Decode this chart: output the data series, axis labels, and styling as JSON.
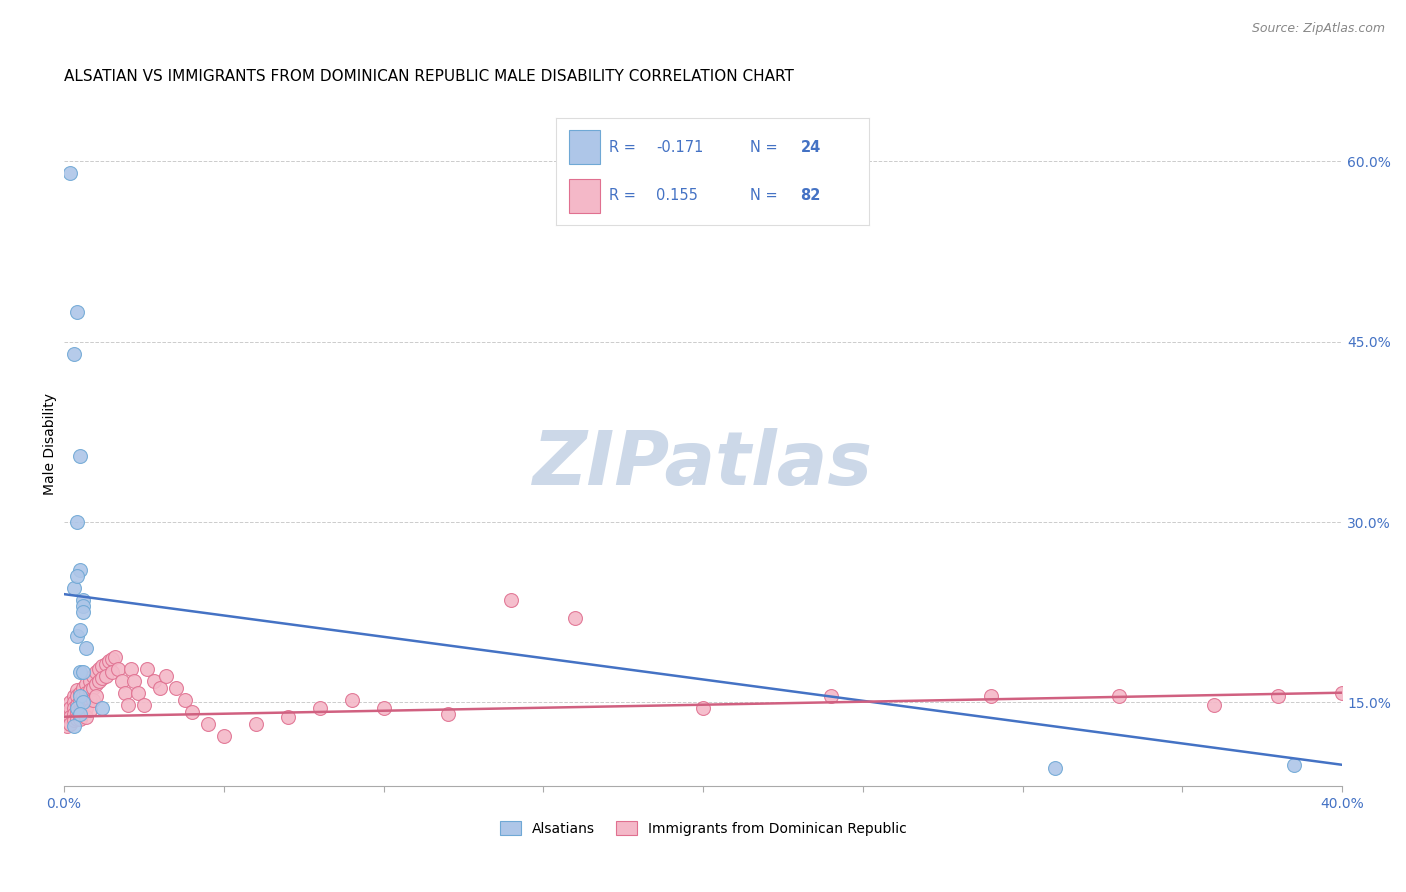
{
  "title": "ALSATIAN VS IMMIGRANTS FROM DOMINICAN REPUBLIC MALE DISABILITY CORRELATION CHART",
  "source": "Source: ZipAtlas.com",
  "ylabel": "Male Disability",
  "right_yticks": [
    0.15,
    0.3,
    0.45,
    0.6
  ],
  "right_yticklabels": [
    "15.0%",
    "30.0%",
    "45.0%",
    "60.0%"
  ],
  "xmin": 0.0,
  "xmax": 0.4,
  "ymin": 0.08,
  "ymax": 0.65,
  "watermark": "ZIPatlas",
  "series": [
    {
      "name": "Alsatians",
      "color": "#aec6e8",
      "edge_color": "#6fa8d5",
      "R": -0.171,
      "N": 24,
      "x": [
        0.002,
        0.004,
        0.003,
        0.005,
        0.004,
        0.005,
        0.003,
        0.006,
        0.004,
        0.006,
        0.005,
        0.004,
        0.006,
        0.005,
        0.007,
        0.006,
        0.003,
        0.005,
        0.004,
        0.006,
        0.005,
        0.012,
        0.31,
        0.385
      ],
      "y": [
        0.59,
        0.475,
        0.44,
        0.355,
        0.3,
        0.26,
        0.245,
        0.235,
        0.205,
        0.23,
        0.175,
        0.255,
        0.225,
        0.21,
        0.195,
        0.175,
        0.13,
        0.155,
        0.145,
        0.15,
        0.14,
        0.145,
        0.095,
        0.098
      ]
    },
    {
      "name": "Immigrants from Dominican Republic",
      "color": "#f4b8c8",
      "edge_color": "#e07090",
      "R": 0.155,
      "N": 82,
      "x": [
        0.001,
        0.001,
        0.001,
        0.002,
        0.002,
        0.002,
        0.002,
        0.003,
        0.003,
        0.003,
        0.003,
        0.003,
        0.004,
        0.004,
        0.004,
        0.004,
        0.004,
        0.005,
        0.005,
        0.005,
        0.005,
        0.006,
        0.006,
        0.006,
        0.006,
        0.007,
        0.007,
        0.007,
        0.007,
        0.007,
        0.008,
        0.008,
        0.008,
        0.008,
        0.009,
        0.009,
        0.009,
        0.01,
        0.01,
        0.01,
        0.011,
        0.011,
        0.012,
        0.012,
        0.013,
        0.013,
        0.014,
        0.015,
        0.015,
        0.016,
        0.017,
        0.018,
        0.019,
        0.02,
        0.021,
        0.022,
        0.023,
        0.025,
        0.026,
        0.028,
        0.03,
        0.032,
        0.035,
        0.038,
        0.04,
        0.045,
        0.05,
        0.06,
        0.07,
        0.08,
        0.09,
        0.1,
        0.12,
        0.14,
        0.16,
        0.2,
        0.24,
        0.29,
        0.33,
        0.36,
        0.38,
        0.4
      ],
      "y": [
        0.14,
        0.135,
        0.13,
        0.15,
        0.145,
        0.138,
        0.132,
        0.155,
        0.15,
        0.145,
        0.14,
        0.135,
        0.16,
        0.155,
        0.148,
        0.142,
        0.136,
        0.158,
        0.15,
        0.143,
        0.136,
        0.162,
        0.155,
        0.148,
        0.142,
        0.165,
        0.158,
        0.151,
        0.145,
        0.138,
        0.168,
        0.16,
        0.152,
        0.144,
        0.172,
        0.162,
        0.152,
        0.175,
        0.165,
        0.155,
        0.178,
        0.168,
        0.18,
        0.17,
        0.182,
        0.172,
        0.184,
        0.186,
        0.175,
        0.188,
        0.178,
        0.168,
        0.158,
        0.148,
        0.178,
        0.168,
        0.158,
        0.148,
        0.178,
        0.168,
        0.162,
        0.172,
        0.162,
        0.152,
        0.142,
        0.132,
        0.122,
        0.132,
        0.138,
        0.145,
        0.152,
        0.145,
        0.14,
        0.235,
        0.22,
        0.145,
        0.155,
        0.155,
        0.155,
        0.148,
        0.155,
        0.158
      ]
    }
  ],
  "trendline_blue": {
    "x_start": 0.0,
    "x_end": 0.4,
    "y_start": 0.24,
    "y_end": 0.098
  },
  "trendline_pink": {
    "x_start": 0.0,
    "x_end": 0.4,
    "y_start": 0.138,
    "y_end": 0.158
  },
  "legend_color": "#4472c4",
  "title_fontsize": 11,
  "source_fontsize": 9,
  "tick_color": "#4472c4",
  "watermark_color": "#ccd8e8",
  "grid_color": "#cccccc"
}
